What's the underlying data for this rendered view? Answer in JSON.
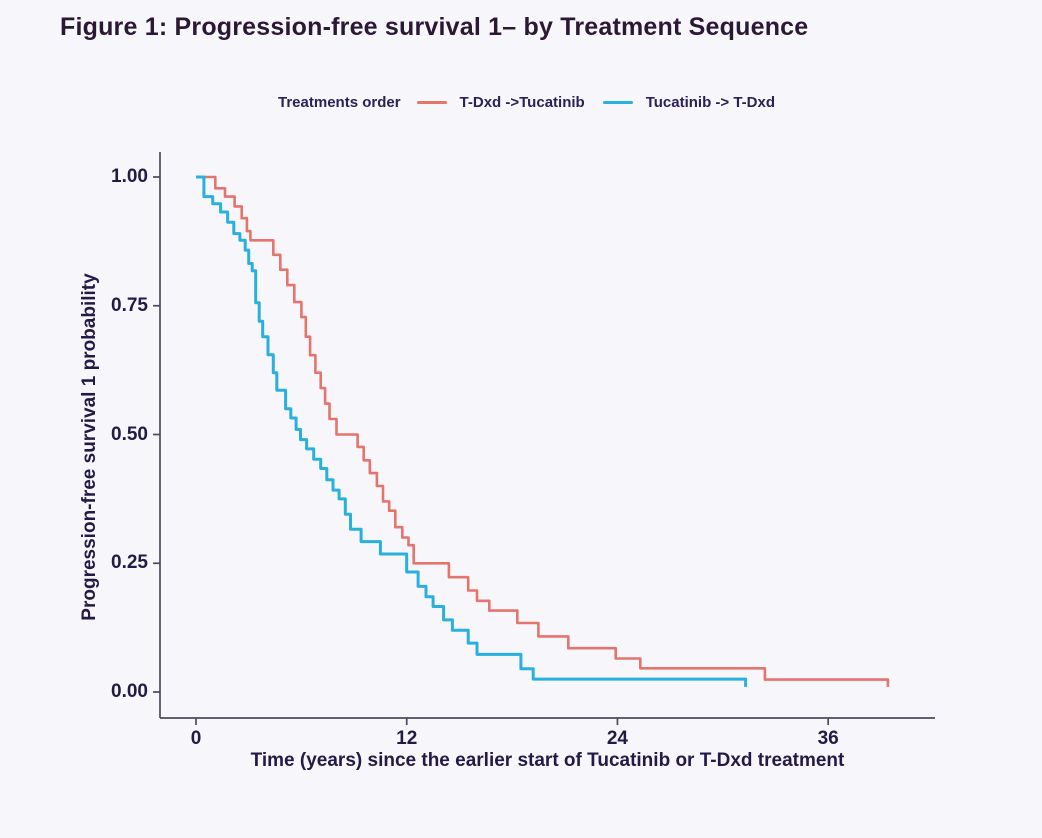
{
  "title": "Figure 1: Progression-free survival 1– by Treatment Sequence",
  "colors": {
    "background": "#f7f6fa",
    "axis": "#4b4b5a",
    "text": "#241a45",
    "title_text": "#2a1834",
    "series_tdxd_first": "#e4756d",
    "series_tucatinib_first": "#29b0dc"
  },
  "chart_data": {
    "type": "line",
    "subtype": "kaplan-meier-step",
    "title": "Figure 1: Progression-free survival 1– by Treatment Sequence",
    "xlabel": "Time (years) since the earlier start of Tucatinib or T-Dxd treatment",
    "ylabel": "Progression-free survival 1 probability",
    "legend_title": "Treatments order",
    "legend_position": "top",
    "grid": false,
    "xlim": [
      0,
      42
    ],
    "ylim": [
      0,
      1.0
    ],
    "x_ticks": [
      "0",
      "12",
      "24",
      "36"
    ],
    "y_ticks": [
      "1.00",
      "0.75",
      "0.50",
      "0.25",
      "0.00"
    ],
    "series": [
      {
        "name": "T-Dxd ->Tucatinib",
        "color": "#e4756d",
        "steps": [
          [
            0,
            1.0
          ],
          [
            1.1,
            0.978
          ],
          [
            1.65,
            0.962
          ],
          [
            2.2,
            0.943
          ],
          [
            2.6,
            0.92
          ],
          [
            2.9,
            0.895
          ],
          [
            3.1,
            0.877
          ],
          [
            4.4,
            0.849
          ],
          [
            4.8,
            0.82
          ],
          [
            5.2,
            0.79
          ],
          [
            5.6,
            0.757
          ],
          [
            6.0,
            0.728
          ],
          [
            6.25,
            0.69
          ],
          [
            6.5,
            0.654
          ],
          [
            6.8,
            0.62
          ],
          [
            7.1,
            0.59
          ],
          [
            7.35,
            0.56
          ],
          [
            7.6,
            0.53
          ],
          [
            8.0,
            0.5
          ],
          [
            9.2,
            0.476
          ],
          [
            9.55,
            0.45
          ],
          [
            9.9,
            0.425
          ],
          [
            10.3,
            0.4
          ],
          [
            10.65,
            0.37
          ],
          [
            11.0,
            0.352
          ],
          [
            11.35,
            0.32
          ],
          [
            11.75,
            0.3
          ],
          [
            12.1,
            0.285
          ],
          [
            12.4,
            0.25
          ],
          [
            14.4,
            0.223
          ],
          [
            15.5,
            0.197
          ],
          [
            16.0,
            0.177
          ],
          [
            16.7,
            0.158
          ],
          [
            18.3,
            0.134
          ],
          [
            19.5,
            0.108
          ],
          [
            21.2,
            0.085
          ],
          [
            23.9,
            0.065
          ],
          [
            25.3,
            0.046
          ],
          [
            32.4,
            0.024
          ],
          [
            39.4,
            0.01
          ]
        ]
      },
      {
        "name": "Tucatinib -> T-Dxd",
        "color": "#29b0dc",
        "steps": [
          [
            0,
            1.0
          ],
          [
            0.45,
            0.962
          ],
          [
            0.95,
            0.948
          ],
          [
            1.4,
            0.932
          ],
          [
            1.8,
            0.912
          ],
          [
            2.15,
            0.89
          ],
          [
            2.5,
            0.877
          ],
          [
            2.8,
            0.858
          ],
          [
            3.0,
            0.832
          ],
          [
            3.2,
            0.818
          ],
          [
            3.4,
            0.756
          ],
          [
            3.6,
            0.72
          ],
          [
            3.8,
            0.69
          ],
          [
            4.1,
            0.655
          ],
          [
            4.4,
            0.62
          ],
          [
            4.6,
            0.586
          ],
          [
            5.1,
            0.55
          ],
          [
            5.4,
            0.532
          ],
          [
            5.7,
            0.51
          ],
          [
            5.95,
            0.49
          ],
          [
            6.3,
            0.472
          ],
          [
            6.7,
            0.452
          ],
          [
            7.1,
            0.434
          ],
          [
            7.45,
            0.412
          ],
          [
            7.8,
            0.392
          ],
          [
            8.15,
            0.375
          ],
          [
            8.5,
            0.345
          ],
          [
            8.8,
            0.316
          ],
          [
            9.4,
            0.292
          ],
          [
            10.5,
            0.268
          ],
          [
            12.0,
            0.233
          ],
          [
            12.65,
            0.205
          ],
          [
            13.1,
            0.185
          ],
          [
            13.5,
            0.166
          ],
          [
            14.1,
            0.14
          ],
          [
            14.6,
            0.12
          ],
          [
            15.5,
            0.095
          ],
          [
            16.0,
            0.073
          ],
          [
            18.5,
            0.045
          ],
          [
            19.2,
            0.025
          ],
          [
            31.3,
            0.01
          ]
        ]
      }
    ]
  }
}
